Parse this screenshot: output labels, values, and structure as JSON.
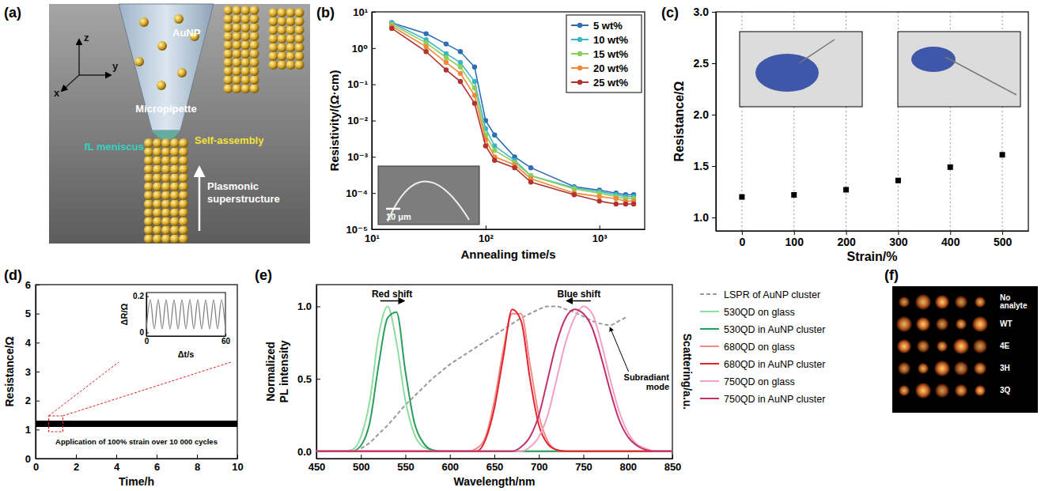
{
  "chart_data": [
    {
      "panel_label": "(b)",
      "type": "line",
      "marker": "circle",
      "log": true,
      "x": [
        15,
        30,
        45,
        60,
        80,
        100,
        120,
        180,
        250,
        600,
        1000,
        1400,
        1700,
        2000
      ],
      "xlim": [
        10,
        2500
      ],
      "xticks": [
        {
          "value": 10,
          "label": "10¹"
        },
        {
          "value": 100,
          "label": "10²"
        },
        {
          "value": 1000,
          "label": "10³"
        }
      ],
      "ylim": [
        1e-05,
        10
      ],
      "yticks": [
        {
          "value": 1e-05,
          "label": "10⁻⁵"
        },
        {
          "value": 0.0001,
          "label": "10⁻⁴"
        },
        {
          "value": 0.001,
          "label": "10⁻³"
        },
        {
          "value": 0.01,
          "label": "10⁻²"
        },
        {
          "value": 0.1,
          "label": "10⁻¹"
        },
        {
          "value": 1,
          "label": "10⁰"
        },
        {
          "value": 10,
          "label": "10¹"
        }
      ],
      "xlabel": "Annealing time/s",
      "ylabel": "Resistivity/(Ω·cm)",
      "legend": "upper right",
      "annotation": "10 μm",
      "series": [
        {
          "name": "5 wt%",
          "color": "#2f6db3",
          "values": [
            5,
            2.5,
            1.3,
            0.8,
            0.3,
            0.01,
            0.004,
            0.001,
            0.0005,
            0.00015,
            0.00012,
            0.0001,
            9e-05,
            9e-05
          ]
        },
        {
          "name": "10 wt%",
          "color": "#3cb5c4",
          "values": [
            5,
            1.7,
            0.7,
            0.4,
            0.12,
            0.006,
            0.002,
            0.0008,
            0.0003,
            0.00014,
            0.00011,
            9e-05,
            8e-05,
            8e-05
          ]
        },
        {
          "name": "15 wt%",
          "color": "#8bd05f",
          "values": [
            4.5,
            1.4,
            0.55,
            0.3,
            0.08,
            0.004,
            0.0015,
            0.0007,
            0.0003,
            0.00013,
            0.0001,
            8e-05,
            7e-05,
            7e-05
          ]
        },
        {
          "name": "20 wt%",
          "color": "#f08a3a",
          "values": [
            4,
            1.1,
            0.4,
            0.2,
            0.05,
            0.003,
            0.001,
            0.0006,
            0.00025,
            0.0001,
            8e-05,
            7e-05,
            6e-05,
            6e-05
          ]
        },
        {
          "name": "25 wt%",
          "color": "#b1322e",
          "values": [
            3.5,
            0.8,
            0.25,
            0.12,
            0.03,
            0.002,
            0.0008,
            0.0005,
            0.0002,
            9e-05,
            6e-05,
            5e-05,
            5e-05,
            5e-05
          ]
        }
      ]
    },
    {
      "panel_label": "(c)",
      "type": "scatter",
      "marker": "square",
      "color": "#000000",
      "x": [
        0,
        100,
        200,
        300,
        400,
        500
      ],
      "values": [
        1.2,
        1.22,
        1.27,
        1.36,
        1.49,
        1.61
      ],
      "xlim": [
        -50,
        550
      ],
      "xticks": [
        0,
        100,
        200,
        300,
        400,
        500
      ],
      "ylim": [
        0.87,
        3.0
      ],
      "yticks": [
        {
          "value": 1,
          "label": "1.0"
        },
        1.5,
        {
          "value": 2,
          "label": "2.0"
        },
        2.5,
        {
          "value": 3,
          "label": "3.0"
        }
      ],
      "xlabel": "Strain/%",
      "ylabel": "Resistance/Ω",
      "grid": true
    },
    {
      "panel_label": "(d)",
      "type": "line",
      "color": "#000000",
      "x": [
        0,
        1,
        2,
        3,
        4,
        5,
        6,
        7,
        8,
        9,
        10
      ],
      "values": [
        1.2,
        1.2,
        1.2,
        1.2,
        1.2,
        1.2,
        1.2,
        1.2,
        1.2,
        1.2,
        1.2
      ],
      "xlim": [
        0,
        10
      ],
      "xticks": [
        0,
        2,
        4,
        6,
        8,
        10
      ],
      "ylim": [
        0,
        6
      ],
      "yticks": [
        0,
        1,
        2,
        3,
        4,
        5,
        6
      ],
      "xlabel": "Time/h",
      "ylabel": "Resistance/Ω",
      "annotation": "Application of 100% strain over 10 000 cycles",
      "inset": {
        "type": "line",
        "color": "#808080",
        "x": [
          0,
          3,
          6,
          9,
          12,
          15,
          18,
          21,
          24,
          27,
          30,
          33,
          36,
          39,
          42,
          45,
          48,
          51,
          54,
          57,
          60
        ],
        "values": [
          0.02,
          0.18,
          0.02,
          0.18,
          0.02,
          0.18,
          0.02,
          0.18,
          0.02,
          0.18,
          0.02,
          0.18,
          0.02,
          0.18,
          0.02,
          0.18,
          0.02,
          0.18,
          0.02,
          0.18,
          0.02
        ],
        "xlim": [
          0,
          60
        ],
        "xticks": [
          0,
          60
        ],
        "ylim": [
          -0.02,
          0.22
        ],
        "yticks": [
          0,
          0.2
        ],
        "xlabel": "Δt/s",
        "ylabel": "ΔR/Ω"
      }
    },
    {
      "panel_label": "(e)",
      "type": "line",
      "legend": "right",
      "x": [
        450,
        460,
        470,
        480,
        490,
        500,
        510,
        520,
        530,
        540,
        550,
        560,
        570,
        580,
        590,
        600,
        610,
        620,
        630,
        640,
        650,
        660,
        670,
        680,
        690,
        700,
        710,
        720,
        730,
        740,
        750,
        760,
        770,
        780,
        790,
        800,
        810,
        820,
        830,
        840,
        850
      ],
      "xlim": [
        450,
        850
      ],
      "xticks": [
        450,
        500,
        550,
        600,
        650,
        700,
        750,
        800,
        850
      ],
      "ylim": [
        -0.05,
        1.15
      ],
      "yticks": [
        {
          "value": 0,
          "label": "0.0"
        },
        0.5,
        {
          "value": 1,
          "label": "1.0"
        }
      ],
      "xlabel": "Wavelength/nm",
      "ylabel": "Normalized PL intensity",
      "y2label": "Scattering/a.u.",
      "annotations": [
        "Red shift",
        "Blue shift",
        "Subradiant mode"
      ],
      "series": [
        {
          "name": "LSPR of AuNP cluster",
          "color": "#9a9a9a",
          "line_style": "dashed",
          "values": [
            null,
            null,
            null,
            null,
            null,
            0.02,
            0.06,
            0.12,
            0.18,
            0.25,
            0.32,
            0.38,
            0.44,
            0.5,
            0.55,
            0.6,
            0.64,
            0.68,
            0.72,
            0.76,
            0.8,
            0.84,
            0.88,
            0.92,
            0.95,
            0.98,
            1.0,
            1.0,
            0.98,
            0.96,
            0.93,
            0.9,
            0.88,
            0.87,
            0.9,
            0.93,
            null,
            null,
            null,
            null,
            null
          ]
        },
        {
          "name": "530QD on glass",
          "color": "#8fdca0",
          "values": [
            0,
            0,
            0,
            0,
            0.01,
            0.1,
            0.35,
            0.8,
            1.0,
            0.75,
            0.35,
            0.12,
            0.03,
            0.01,
            0,
            0,
            0,
            0,
            0,
            0,
            0,
            0,
            0,
            0,
            0,
            0,
            0,
            0,
            0,
            0,
            0,
            0,
            0,
            0,
            0,
            0,
            0,
            0,
            0,
            0,
            0
          ]
        },
        {
          "name": "530QD in AuNP cluster",
          "color": "#2a9d5c",
          "values": [
            0,
            0,
            0,
            0,
            0,
            0.04,
            0.2,
            0.6,
            0.92,
            0.96,
            0.55,
            0.2,
            0.06,
            0.01,
            0,
            0,
            0,
            0,
            0,
            0,
            0,
            0,
            0,
            0,
            0,
            0,
            0,
            0,
            0,
            0,
            0,
            0,
            0,
            0,
            0,
            0,
            0,
            0,
            0,
            0,
            0
          ]
        },
        {
          "name": "680QD on glass",
          "color": "#f28b8b",
          "values": [
            0,
            0,
            0,
            0,
            0,
            0,
            0,
            0,
            0,
            0,
            0,
            0,
            0,
            0,
            0,
            0,
            0,
            0,
            0.02,
            0.1,
            0.35,
            0.7,
            0.95,
            0.95,
            0.6,
            0.25,
            0.07,
            0.01,
            0,
            0,
            0,
            0,
            0,
            0,
            0,
            0,
            0,
            0,
            0,
            0,
            0
          ]
        },
        {
          "name": "680QD in AuNP cluster",
          "color": "#e3262d",
          "values": [
            0,
            0,
            0,
            0,
            0,
            0,
            0,
            0,
            0,
            0,
            0,
            0,
            0,
            0,
            0,
            0,
            0,
            0,
            0,
            0.08,
            0.3,
            0.65,
            0.98,
            0.9,
            0.5,
            0.18,
            0.05,
            0.01,
            0,
            0,
            0,
            0,
            0,
            0,
            0,
            0,
            0,
            0,
            0,
            0,
            0
          ]
        },
        {
          "name": "750QD on glass",
          "color": "#f2a0c4",
          "values": [
            0,
            0,
            0,
            0,
            0,
            0,
            0,
            0,
            0,
            0,
            0,
            0,
            0,
            0,
            0,
            0,
            0,
            0,
            0,
            0,
            0,
            0,
            0,
            0,
            0.03,
            0.1,
            0.25,
            0.5,
            0.75,
            0.92,
            1.0,
            0.95,
            0.75,
            0.5,
            0.28,
            0.13,
            0.05,
            0.02,
            0,
            0,
            0
          ]
        },
        {
          "name": "750QD in AuNP cluster",
          "color": "#c2306a",
          "values": [
            0,
            0,
            0,
            0,
            0,
            0,
            0,
            0,
            0,
            0,
            0,
            0,
            0,
            0,
            0,
            0,
            0,
            0,
            0,
            0,
            0,
            0,
            0,
            0.03,
            0.1,
            0.25,
            0.5,
            0.75,
            0.92,
            0.98,
            0.95,
            0.85,
            0.65,
            0.42,
            0.22,
            0.1,
            0.04,
            0.01,
            0,
            0,
            0
          ]
        }
      ]
    }
  ],
  "diagram": {
    "panel_label": "(a)",
    "axes": [
      "z",
      "x",
      "y"
    ],
    "labels": [
      "AuNP",
      "Micropipette",
      "fL meniscus",
      "Self-assembly",
      "Plasmonic superstructure"
    ]
  },
  "image": {
    "panel_label": "(f)",
    "row_labels": [
      "No analyte",
      "WT",
      "4E",
      "3H",
      "3Q"
    ]
  }
}
